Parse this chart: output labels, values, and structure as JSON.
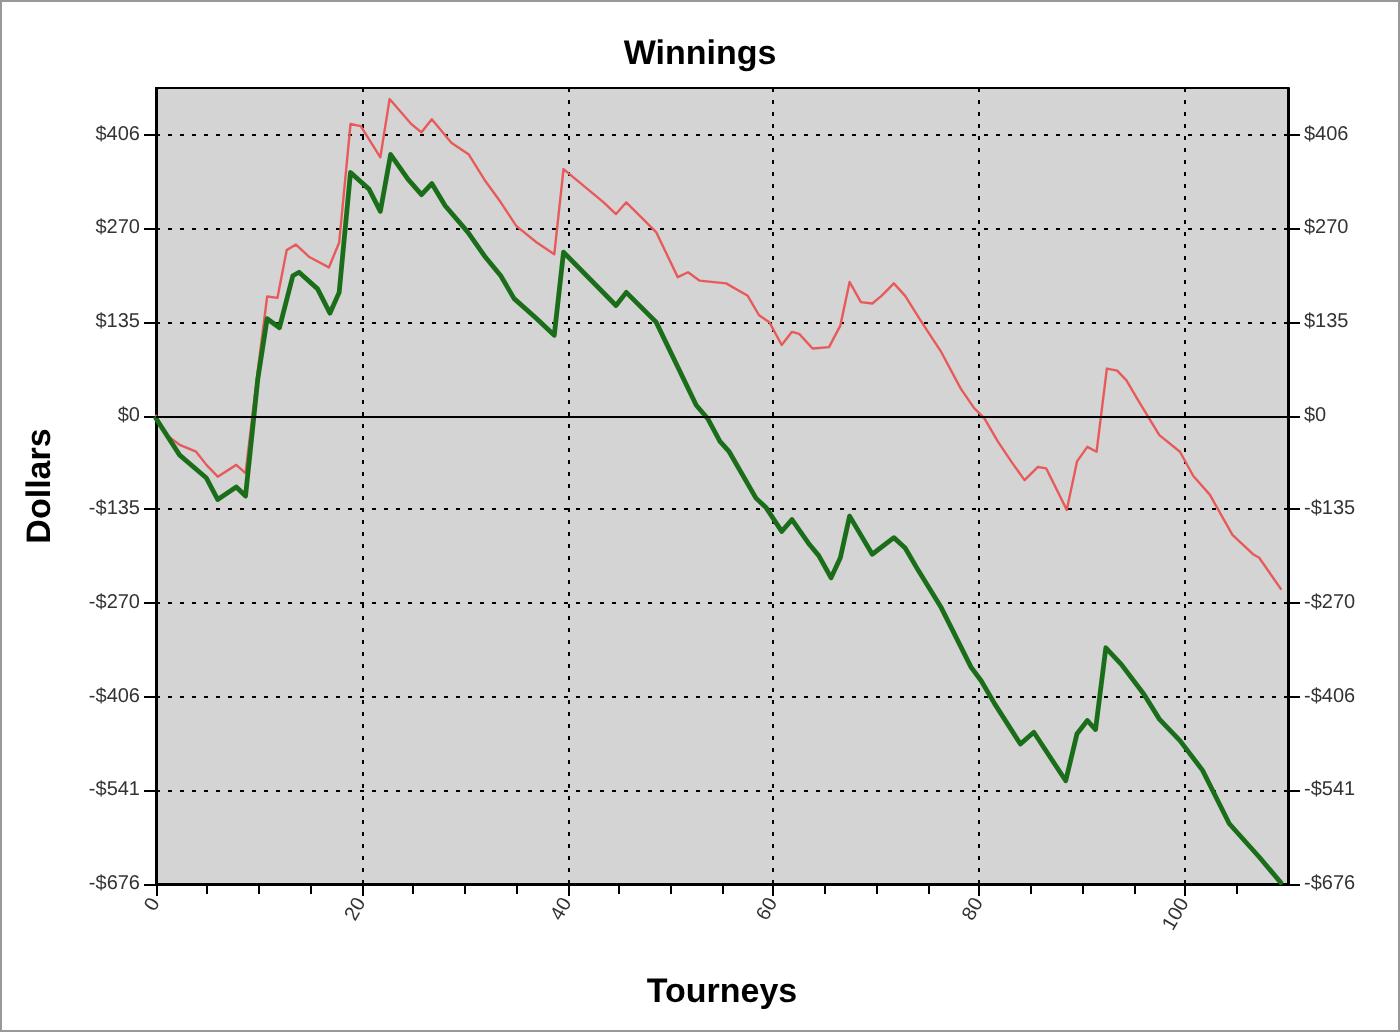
{
  "chart_data": {
    "type": "line",
    "title": "Winnings",
    "xlabel": "Tourneys",
    "ylabel": "Dollars",
    "xlim": [
      0,
      110
    ],
    "xticks": [
      0,
      {
        "value": 5,
        "label": null
      },
      {
        "value": 10,
        "label": null
      },
      {
        "value": 15,
        "label": null
      },
      20,
      {
        "value": 25,
        "label": null
      },
      {
        "value": 30,
        "label": null
      },
      {
        "value": 35,
        "label": null
      },
      40,
      {
        "value": 45,
        "label": null
      },
      {
        "value": 50,
        "label": null
      },
      {
        "value": 55,
        "label": null
      },
      60,
      {
        "value": 65,
        "label": null
      },
      {
        "value": 70,
        "label": null
      },
      {
        "value": 75,
        "label": null
      },
      80,
      {
        "value": 85,
        "label": null
      },
      {
        "value": 90,
        "label": null
      },
      {
        "value": 95,
        "label": null
      },
      100,
      {
        "value": 105,
        "label": null
      }
    ],
    "ylim": [
      -676,
      473
    ],
    "yticks": [
      {
        "value": -676,
        "label": "-$676"
      },
      {
        "value": -540.8,
        "label": "-$541"
      },
      {
        "value": -405.6,
        "label": "-$406"
      },
      {
        "value": -270.4,
        "label": "-$270"
      },
      {
        "value": -135.2,
        "label": "-$135"
      },
      {
        "value": 0,
        "label": "$0"
      },
      {
        "value": 135.2,
        "label": "$135"
      },
      {
        "value": 270.4,
        "label": "$270"
      },
      {
        "value": 405.6,
        "label": "$406"
      }
    ],
    "y2lim": [
      -676,
      473
    ],
    "y2ticks": [
      {
        "value": -676,
        "label": "-$676"
      },
      {
        "value": -540.8,
        "label": "-$541"
      },
      {
        "value": -405.6,
        "label": "-$406"
      },
      {
        "value": -270.4,
        "label": "-$270"
      },
      {
        "value": -135.2,
        "label": "-$135"
      },
      {
        "value": 0,
        "label": "$0"
      },
      {
        "value": 135.2,
        "label": "$135"
      },
      {
        "value": 270.4,
        "label": "$270"
      },
      {
        "value": 405.6,
        "label": "$406"
      }
    ],
    "grid": true,
    "marker": "none",
    "line_style": "solid",
    "ref_lines": [
      {
        "axis": "y",
        "value": 0,
        "color": "#000000"
      }
    ],
    "series": [
      {
        "color": "#e85a5a",
        "x": [
          0,
          1,
          2.3,
          3.9,
          4.9,
          6,
          7.8,
          8.7,
          10,
          10.8,
          11.8,
          12.7,
          13.6,
          14.9,
          16.8,
          17.8,
          18.9,
          19.9,
          21.8,
          22.7,
          24.8,
          25.8,
          26.8,
          28.7,
          30.4,
          31.9,
          33.5,
          35,
          37,
          38.7,
          39.6,
          43.5,
          44.7,
          45.7,
          48.6,
          50.7,
          51.7,
          52.8,
          55.4,
          57.5,
          58.6,
          59.6,
          60.8,
          61.8,
          62.5,
          63.8,
          65.4,
          66.5,
          67.4,
          68.5,
          69.6,
          70.5,
          71.7,
          72.8,
          74.4,
          76.3,
          78.2,
          79.5,
          80.5,
          81.8,
          83.1,
          84.4,
          85.7,
          86.5,
          88.5,
          89.5,
          90.5,
          91.4,
          92.4,
          93.4,
          94.3,
          95.6,
          97.5,
          99.5,
          100.8,
          102.4,
          104.6,
          106.6,
          107.2,
          109.3
        ],
        "values": [
          0,
          -28,
          -42,
          -52,
          -71,
          -88,
          -71,
          -83,
          78,
          172,
          170,
          239,
          247,
          229,
          214,
          250,
          421,
          418,
          373,
          457,
          421,
          409,
          428,
          394,
          377,
          341,
          308,
          274,
          250,
          233,
          356,
          308,
          291,
          308,
          265,
          200,
          207,
          195,
          191,
          173,
          145,
          135,
          102,
          121,
          118,
          97,
          99,
          130,
          193,
          164,
          162,
          173,
          191,
          173,
          135,
          92,
          39,
          11,
          -4,
          -37,
          -66,
          -93,
          -74,
          -76,
          -136,
          -66,
          -45,
          -52,
          68,
          65,
          51,
          18,
          -28,
          -52,
          -87,
          -114,
          -172,
          -200,
          -205,
          -250
        ]
      },
      {
        "color": "#1a6e1a",
        "x": [
          0,
          2.3,
          4.9,
          6,
          7.8,
          8.7,
          9.9,
          10.8,
          12,
          13.3,
          13.9,
          15.7,
          16.9,
          17.8,
          18.9,
          20.7,
          21.8,
          22.8,
          24.5,
          25.8,
          26.8,
          28.1,
          30.3,
          31.9,
          33.5,
          34.8,
          37,
          38.7,
          39.6,
          44.7,
          45.7,
          48.6,
          52.5,
          53.6,
          54.8,
          55.7,
          58.3,
          59.3,
          60.8,
          61.8,
          63.5,
          64.4,
          65.6,
          66.5,
          67.4,
          69.6,
          71.7,
          72.8,
          74.1,
          76.3,
          79.2,
          80.2,
          81.5,
          84,
          85.3,
          88.4,
          89.5,
          90.5,
          91.3,
          92.3,
          93.8,
          96,
          97.5,
          99.5,
          101.7,
          104.3,
          107.2,
          109.3
        ],
        "values": [
          -4,
          -57,
          -90,
          -121,
          -103,
          -116,
          54,
          140,
          127,
          202,
          207,
          183,
          148,
          178,
          351,
          327,
          295,
          377,
          341,
          319,
          335,
          303,
          265,
          231,
          202,
          169,
          140,
          116,
          236,
          159,
          178,
          135,
          15,
          -4,
          -37,
          -52,
          -119,
          -133,
          -167,
          -150,
          -186,
          -202,
          -234,
          -205,
          -145,
          -200,
          -176,
          -191,
          -224,
          -277,
          -363,
          -383,
          -416,
          -474,
          -457,
          -527,
          -459,
          -440,
          -453,
          -335,
          -359,
          -402,
          -438,
          -469,
          -512,
          -589,
          -637,
          -674
        ]
      }
    ]
  }
}
